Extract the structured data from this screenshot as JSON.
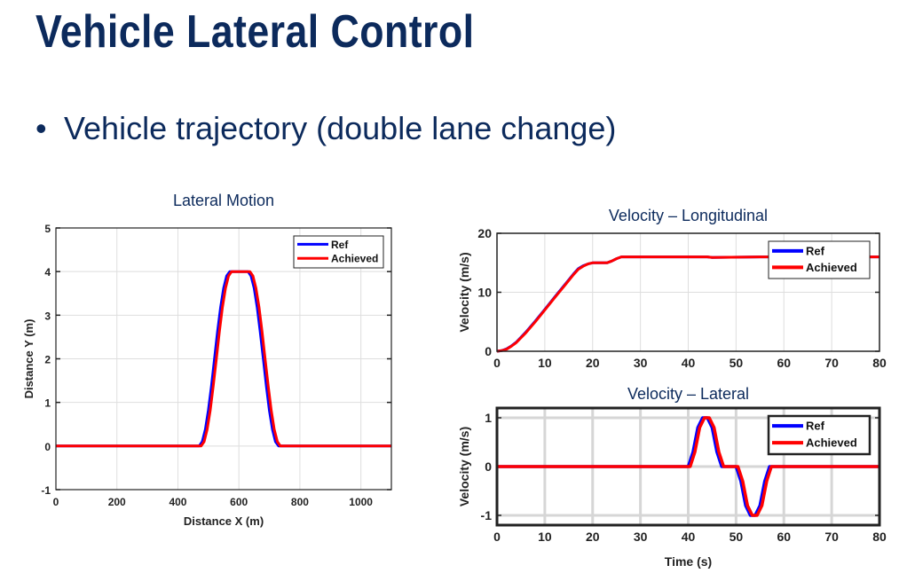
{
  "slide": {
    "title": "Vehicle Lateral Control",
    "bullet_symbol": "•",
    "bullet_text": "Vehicle trajectory (double lane change)"
  },
  "colors": {
    "title": "#0c2a5c",
    "ref": "#0000ff",
    "achieved": "#ff0000",
    "grid": "#d9d9d9"
  },
  "chart_data": [
    {
      "type": "line",
      "title": "Lateral Motion",
      "xlabel": "Distance X (m)",
      "ylabel": "Distance Y (m)",
      "xlim": [
        0,
        1100
      ],
      "ylim": [
        -1,
        5
      ],
      "xticks": [
        "0",
        "200",
        "400",
        "600",
        "800",
        "1000"
      ],
      "xtick_values": [
        0,
        200,
        400,
        600,
        800,
        1000
      ],
      "yticks": [
        "-1",
        "0",
        "1",
        "2",
        "3",
        "4",
        "5"
      ],
      "ytick_values": [
        -1,
        0,
        1,
        2,
        3,
        4,
        5
      ],
      "grid": true,
      "legend_position": "top-right",
      "series": [
        {
          "name": "Ref",
          "color": "#0000ff",
          "x": [
            0,
            470,
            480,
            490,
            500,
            510,
            520,
            530,
            540,
            550,
            560,
            570,
            630,
            640,
            650,
            660,
            670,
            680,
            690,
            700,
            710,
            720,
            730,
            1100
          ],
          "y": [
            0,
            0,
            0.1,
            0.38,
            0.82,
            1.38,
            2,
            2.62,
            3.18,
            3.62,
            3.9,
            4,
            4,
            3.9,
            3.62,
            3.18,
            2.62,
            2,
            1.38,
            0.82,
            0.38,
            0.1,
            0,
            0
          ]
        },
        {
          "name": "Achieved",
          "color": "#ff0000",
          "x": [
            0,
            476,
            486,
            496,
            506,
            516,
            526,
            536,
            546,
            556,
            566,
            576,
            636,
            646,
            656,
            666,
            676,
            686,
            696,
            706,
            716,
            726,
            736,
            1100
          ],
          "y": [
            0,
            0,
            0.1,
            0.38,
            0.82,
            1.38,
            2,
            2.62,
            3.18,
            3.62,
            3.9,
            4,
            4,
            3.9,
            3.62,
            3.18,
            2.62,
            2,
            1.38,
            0.82,
            0.38,
            0.1,
            0,
            0
          ]
        }
      ]
    },
    {
      "type": "line",
      "title": "Velocity – Longitudinal",
      "xlabel": "",
      "ylabel": "Velocity (m/s)",
      "xlim": [
        0,
        80
      ],
      "ylim": [
        0,
        20
      ],
      "xticks": [
        "0",
        "10",
        "20",
        "30",
        "40",
        "50",
        "60",
        "70",
        "80"
      ],
      "xtick_values": [
        0,
        10,
        20,
        30,
        40,
        50,
        60,
        70,
        80
      ],
      "yticks": [
        "0",
        "10",
        "20"
      ],
      "ytick_values": [
        0,
        10,
        20
      ],
      "grid": true,
      "legend_position": "top-right",
      "series": [
        {
          "name": "Ref",
          "color": "#0000ff",
          "x": [
            0,
            1,
            2,
            3,
            4,
            6,
            8,
            10,
            12,
            14,
            16,
            17,
            18,
            19,
            20,
            23,
            24,
            25,
            26,
            44,
            45,
            55,
            80
          ],
          "y": [
            0,
            0.1,
            0.4,
            0.9,
            1.5,
            3.2,
            5.1,
            7.1,
            9.1,
            11.1,
            13.1,
            14,
            14.5,
            14.8,
            15,
            15,
            15.3,
            15.7,
            16,
            16,
            15.9,
            16,
            16
          ]
        },
        {
          "name": "Achieved",
          "color": "#ff0000",
          "x": [
            0,
            1,
            2,
            3,
            4,
            6,
            8,
            10,
            12,
            14,
            16,
            17,
            18,
            19,
            20,
            23,
            24,
            25,
            26,
            44,
            45,
            55,
            80
          ],
          "y": [
            0,
            0.1,
            0.35,
            0.85,
            1.45,
            3.1,
            5,
            7,
            9,
            11,
            13,
            13.9,
            14.4,
            14.8,
            15,
            15,
            15.3,
            15.7,
            16,
            16,
            15.9,
            16,
            16
          ]
        }
      ]
    },
    {
      "type": "line",
      "title": "Velocity – Lateral",
      "xlabel": "Time (s)",
      "ylabel": "Velocity (m/s)",
      "xlim": [
        0,
        80
      ],
      "ylim": [
        -1.2,
        1.2
      ],
      "xticks": [
        "0",
        "10",
        "20",
        "30",
        "40",
        "50",
        "60",
        "70",
        "80"
      ],
      "xtick_values": [
        0,
        10,
        20,
        30,
        40,
        50,
        60,
        70,
        80
      ],
      "yticks": [
        "-1",
        "0",
        "1"
      ],
      "ytick_values": [
        -1,
        0,
        1
      ],
      "grid": true,
      "legend_position": "top-right",
      "series": [
        {
          "name": "Ref",
          "color": "#0000ff",
          "x": [
            0,
            40,
            41,
            42,
            43,
            44,
            45,
            46,
            47,
            50,
            51,
            52,
            53,
            54,
            55,
            56,
            57,
            80
          ],
          "y": [
            0,
            0,
            0.3,
            0.8,
            1,
            1,
            0.8,
            0.3,
            0,
            0,
            -0.3,
            -0.8,
            -1,
            -1,
            -0.8,
            -0.3,
            0,
            0
          ]
        },
        {
          "name": "Achieved",
          "color": "#ff0000",
          "x": [
            0,
            40.4,
            41.4,
            42.4,
            43.4,
            44.4,
            45.4,
            46.4,
            47.4,
            50.4,
            51.4,
            52.4,
            53.4,
            54.4,
            55.4,
            56.4,
            57.4,
            80
          ],
          "y": [
            0,
            0,
            0.3,
            0.8,
            1,
            1,
            0.8,
            0.3,
            0,
            0,
            -0.3,
            -0.8,
            -1,
            -1,
            -0.8,
            -0.3,
            0,
            0
          ]
        }
      ]
    }
  ]
}
